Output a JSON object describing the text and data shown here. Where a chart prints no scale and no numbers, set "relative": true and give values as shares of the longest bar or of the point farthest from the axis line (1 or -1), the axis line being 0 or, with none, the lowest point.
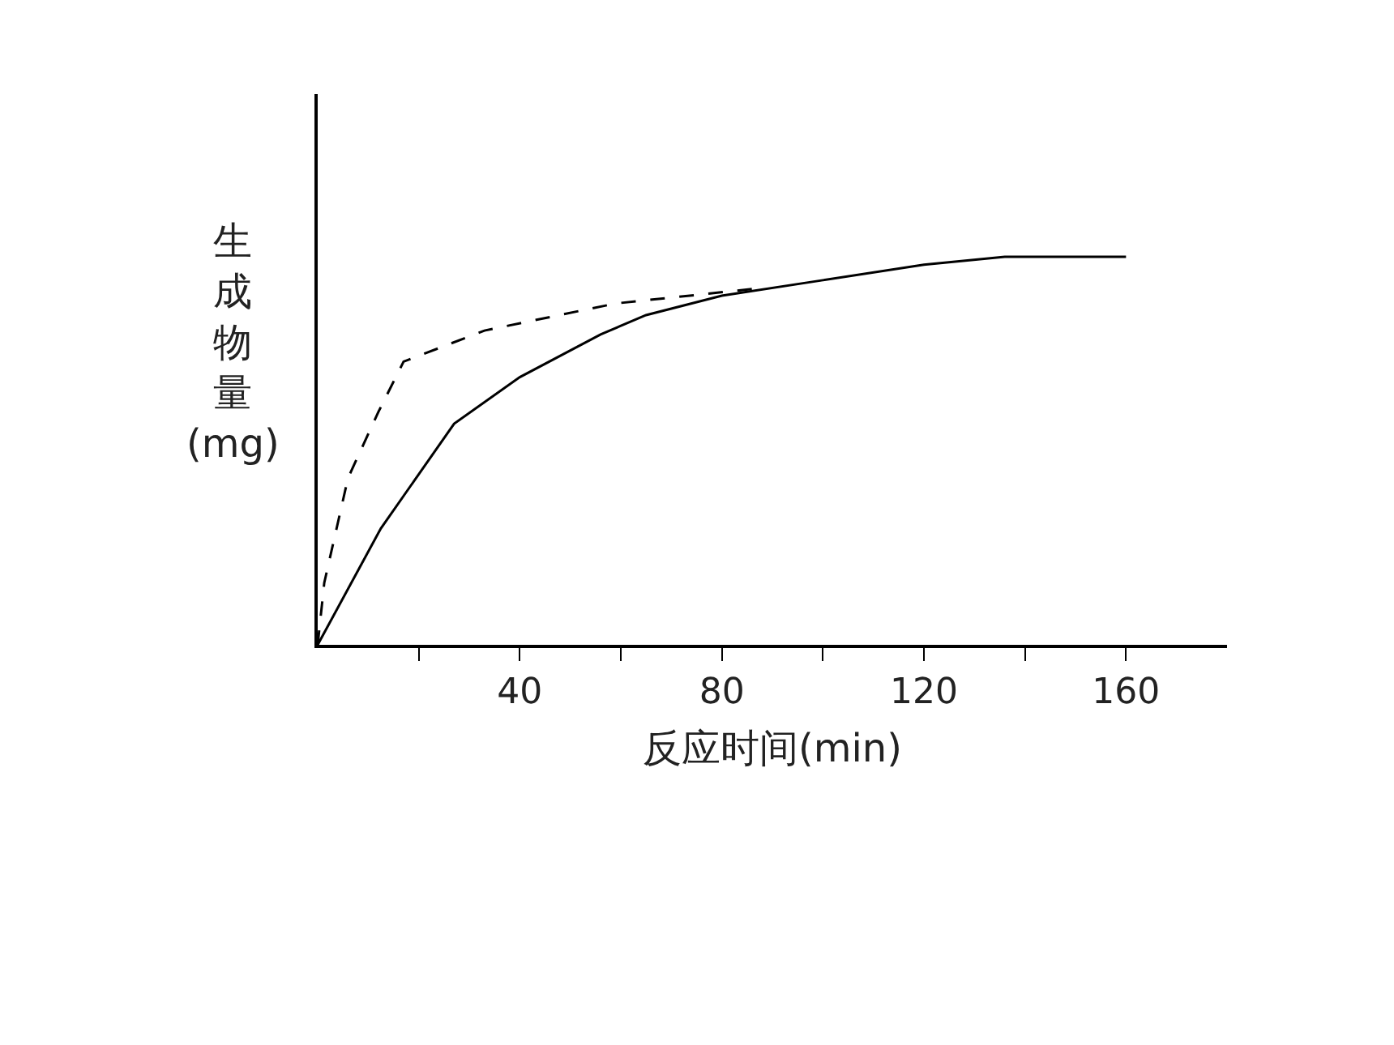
{
  "chart_data": {
    "type": "line",
    "relative": true,
    "xlabel": "反应时间(min)",
    "ylabel": "生成物量(mg)",
    "xlim": [
      0,
      180
    ],
    "xticks": [
      {
        "value": 20,
        "label": null
      },
      40,
      {
        "value": 60,
        "label": null
      },
      80,
      {
        "value": 100,
        "label": null
      },
      120,
      {
        "value": 140,
        "label": null
      },
      160
    ],
    "legend": false,
    "marker": "none",
    "series": [
      {
        "color": "#000000",
        "line_style": "solid",
        "x": [
          0,
          12.5,
          27,
          40,
          56,
          65,
          80,
          100,
          120,
          136,
          160
        ],
        "values": [
          0,
          0.3,
          0.57,
          0.69,
          0.8,
          0.85,
          0.9,
          0.94,
          0.98,
          1,
          1
        ]
      },
      {
        "color": "#000000",
        "line_style": "dashed",
        "x": [
          0,
          1.3,
          6,
          12,
          17,
          33,
          59,
          88
        ],
        "values": [
          0,
          0.16,
          0.43,
          0.6,
          0.73,
          0.81,
          0.88,
          0.92
        ]
      }
    ]
  }
}
